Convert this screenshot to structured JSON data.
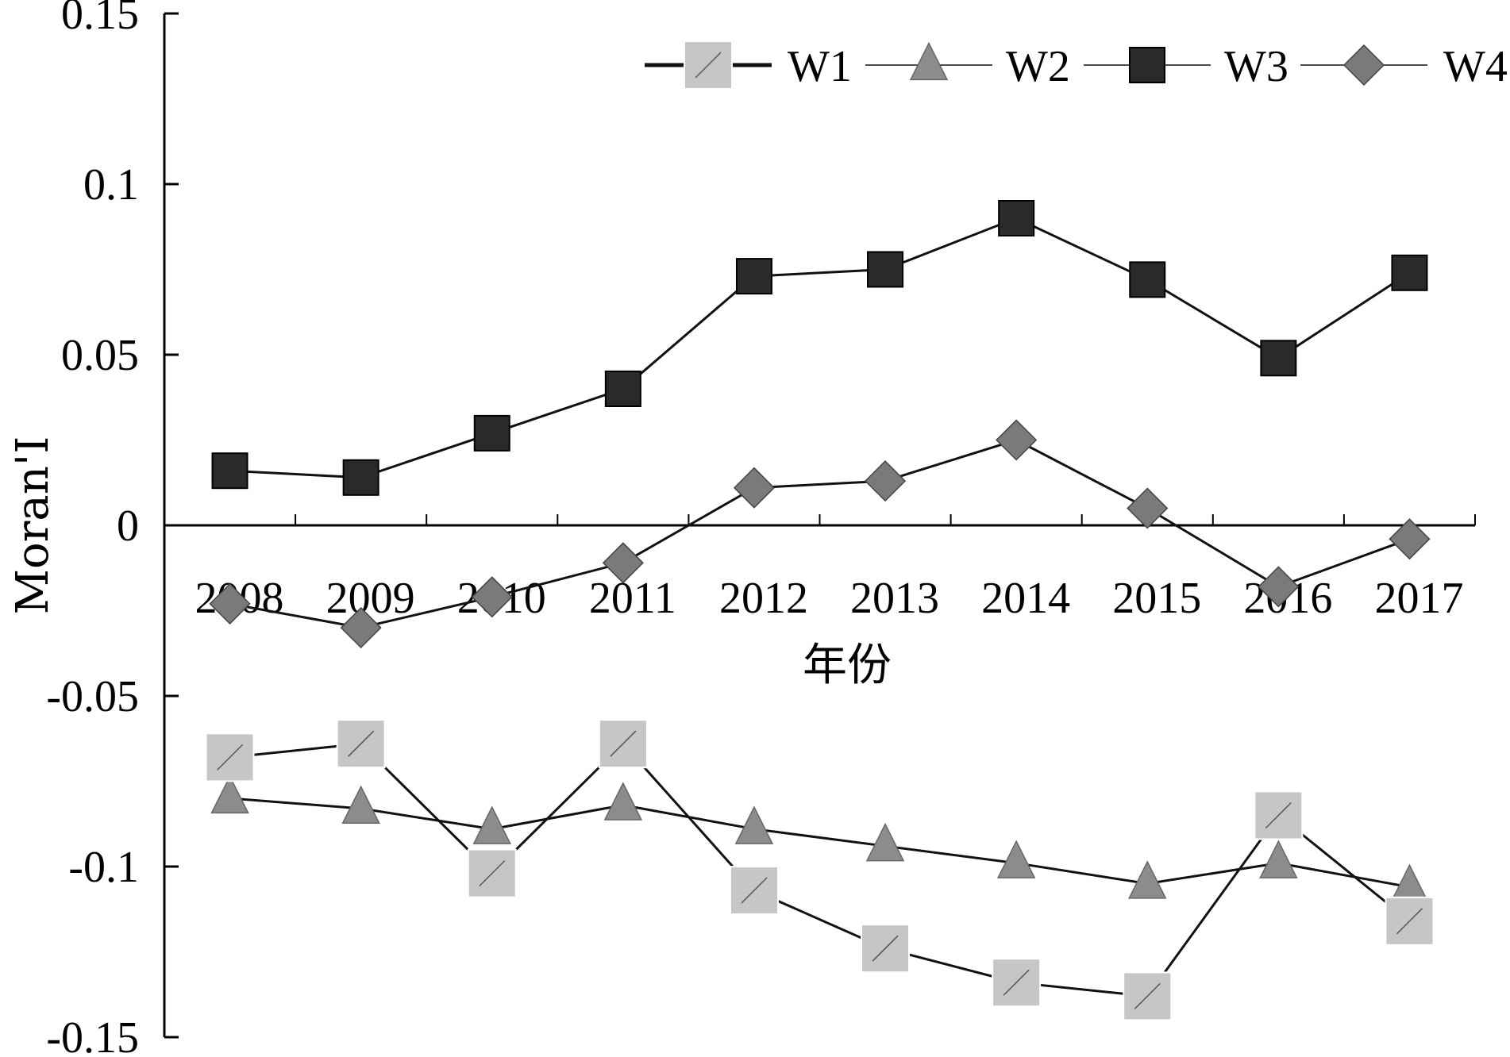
{
  "chart_data": {
    "type": "line",
    "title": "",
    "xlabel": "年份",
    "ylabel": "Moran'I",
    "ylim": [
      -0.15,
      0.15
    ],
    "y_ticks": [
      "0.15",
      "0.1",
      "0.05",
      "0",
      "-0.05",
      "-0.1",
      "-0.15"
    ],
    "categories": [
      "2008",
      "2009",
      "2010",
      "2011",
      "2012",
      "2013",
      "2014",
      "2015",
      "2016",
      "2017"
    ],
    "legend_position": "top-right",
    "grid": false,
    "series": [
      {
        "name": "W1",
        "marker": "square-large",
        "color": "#c6c6c6",
        "values": [
          -0.068,
          -0.064,
          -0.102,
          -0.064,
          -0.107,
          -0.124,
          -0.134,
          -0.138,
          -0.085,
          -0.116
        ]
      },
      {
        "name": "W2",
        "marker": "triangle",
        "color": "#8c8c8c",
        "values": [
          -0.08,
          -0.083,
          -0.089,
          -0.082,
          -0.089,
          -0.094,
          -0.099,
          -0.105,
          -0.099,
          -0.106
        ]
      },
      {
        "name": "W3",
        "marker": "square",
        "color": "#2a2a2a",
        "values": [
          0.016,
          0.014,
          0.027,
          0.04,
          0.073,
          0.075,
          0.09,
          0.072,
          0.049,
          0.074
        ]
      },
      {
        "name": "W4",
        "marker": "diamond",
        "color": "#7a7a7a",
        "values": [
          -0.023,
          -0.03,
          -0.021,
          -0.011,
          0.011,
          0.013,
          0.025,
          0.005,
          -0.018,
          -0.004
        ]
      }
    ]
  }
}
